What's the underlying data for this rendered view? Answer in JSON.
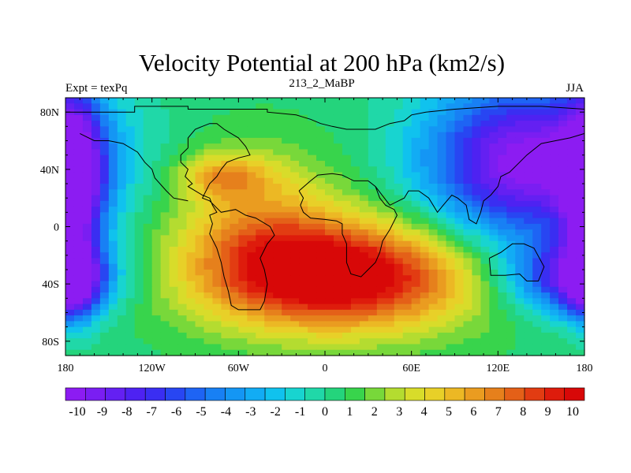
{
  "chart_data": {
    "type": "heatmap",
    "title": "Velocity Potential at 200 hPa (km2/s)",
    "left_string": "Expt = texPq",
    "center_string": "213_2_MaBP",
    "right_string": "JJA",
    "x_ticks": [
      "180",
      "120W",
      "60W",
      "0",
      "60E",
      "120E",
      "180"
    ],
    "x_tick_values": [
      -180,
      -120,
      -60,
      0,
      60,
      120,
      180
    ],
    "y_ticks": [
      "80N",
      "40N",
      "0",
      "40S",
      "80S"
    ],
    "y_tick_values": [
      80,
      40,
      0,
      -40,
      -80
    ],
    "xlim": [
      -180,
      180
    ],
    "ylim": [
      -90,
      90
    ],
    "colorbar_labels": [
      "-10",
      "-9",
      "-8",
      "-7",
      "-6",
      "-5",
      "-4",
      "-3",
      "-2",
      "-1",
      "0",
      "1",
      "2",
      "3",
      "4",
      "5",
      "6",
      "7",
      "8",
      "9",
      "10"
    ],
    "colorbar_colors": [
      "#8c1cf2",
      "#7a1ef2",
      "#6420f2",
      "#4e22f2",
      "#3a2ef2",
      "#2846f2",
      "#1e64f4",
      "#1880f4",
      "#1496f4",
      "#12acf4",
      "#10c2ee",
      "#18d4d0",
      "#20d8a8",
      "#24d47c",
      "#38d44c",
      "#78d83a",
      "#b4dc30",
      "#d8dc2a",
      "#e8d028",
      "#ecb824",
      "#ea9c20",
      "#e6801c",
      "#e46018",
      "#e23c12",
      "#de1c0c",
      "#d80808"
    ],
    "value_range": [
      -10.5,
      10.5
    ],
    "field_centers": [
      {
        "lon": 10,
        "lat": -35,
        "value": 11,
        "spread_lon": 95,
        "spread_lat": 38
      },
      {
        "lon": -45,
        "lat": 5,
        "value": 4,
        "spread_lon": 60,
        "spread_lat": 50
      },
      {
        "lon": -70,
        "lat": 35,
        "value": 4,
        "spread_lon": 30,
        "spread_lat": 15
      },
      {
        "lon": 140,
        "lat": 45,
        "value": -11,
        "spread_lon": 70,
        "spread_lat": 55
      },
      {
        "lon": 170,
        "lat": -35,
        "value": -8,
        "spread_lon": 45,
        "spread_lat": 25
      },
      {
        "lon": -175,
        "lat": 30,
        "value": -10,
        "spread_lon": 20,
        "spread_lat": 60
      },
      {
        "lon": -175,
        "lat": -40,
        "value": -7,
        "spread_lon": 18,
        "spread_lat": 25
      }
    ],
    "coastline": [
      [
        [
          -180,
          80
        ],
        [
          -132,
          80
        ],
        [
          -132,
          84
        ],
        [
          -95,
          84
        ],
        [
          -95,
          82
        ],
        [
          -40,
          82
        ],
        [
          -40,
          80
        ],
        [
          -20,
          78
        ],
        [
          -10,
          75
        ],
        [
          -3,
          72
        ],
        [
          5,
          70
        ],
        [
          15,
          68
        ],
        [
          25,
          68
        ],
        [
          35,
          68
        ],
        [
          40,
          70
        ],
        [
          45,
          72
        ],
        [
          55,
          74
        ],
        [
          60,
          78
        ],
        [
          70,
          80
        ],
        [
          90,
          82
        ],
        [
          120,
          84
        ],
        [
          150,
          84
        ],
        [
          180,
          82
        ]
      ],
      [
        [
          -95,
          55
        ],
        [
          -100,
          50
        ],
        [
          -100,
          45
        ],
        [
          -95,
          40
        ],
        [
          -97,
          35
        ],
        [
          -92,
          30
        ],
        [
          -95,
          28
        ],
        [
          -90,
          25
        ],
        [
          -85,
          22
        ],
        [
          -80,
          20
        ],
        [
          -78,
          15
        ],
        [
          -75,
          10
        ],
        [
          -80,
          8
        ],
        [
          -78,
          2
        ],
        [
          -80,
          -5
        ],
        [
          -75,
          -15
        ],
        [
          -72,
          -25
        ],
        [
          -70,
          -35
        ],
        [
          -67,
          -45
        ],
        [
          -65,
          -55
        ],
        [
          -60,
          -58
        ],
        [
          -45,
          -58
        ],
        [
          -42,
          -52
        ],
        [
          -40,
          -40
        ],
        [
          -42,
          -30
        ],
        [
          -45,
          -22
        ],
        [
          -40,
          -12
        ],
        [
          -35,
          -6
        ],
        [
          -38,
          0
        ],
        [
          -48,
          6
        ],
        [
          -55,
          8
        ],
        [
          -62,
          12
        ],
        [
          -72,
          10
        ],
        [
          -80,
          18
        ],
        [
          -85,
          20
        ],
        [
          -80,
          30
        ],
        [
          -75,
          35
        ],
        [
          -72,
          40
        ],
        [
          -68,
          45
        ],
        [
          -60,
          48
        ],
        [
          -52,
          50
        ],
        [
          -55,
          56
        ],
        [
          -60,
          62
        ],
        [
          -70,
          68
        ],
        [
          -75,
          72
        ],
        [
          -80,
          72
        ],
        [
          -85,
          70
        ],
        [
          -90,
          68
        ],
        [
          -95,
          62
        ],
        [
          -95,
          55
        ]
      ],
      [
        [
          -18,
          25
        ],
        [
          -15,
          20
        ],
        [
          -17,
          15
        ],
        [
          -15,
          10
        ],
        [
          -10,
          6
        ],
        [
          0,
          5
        ],
        [
          8,
          4
        ],
        [
          12,
          2
        ],
        [
          12,
          -5
        ],
        [
          15,
          -12
        ],
        [
          15,
          -25
        ],
        [
          18,
          -33
        ],
        [
          25,
          -35
        ],
        [
          30,
          -30
        ],
        [
          35,
          -25
        ],
        [
          38,
          -18
        ],
        [
          40,
          -10
        ],
        [
          45,
          -2
        ],
        [
          50,
          8
        ],
        [
          48,
          12
        ],
        [
          42,
          15
        ],
        [
          38,
          20
        ],
        [
          35,
          28
        ],
        [
          30,
          32
        ],
        [
          20,
          32
        ],
        [
          12,
          36
        ],
        [
          5,
          37
        ],
        [
          -5,
          36
        ],
        [
          -10,
          32
        ],
        [
          -18,
          25
        ]
      ],
      [
        [
          35,
          28
        ],
        [
          45,
          15
        ],
        [
          55,
          20
        ],
        [
          58,
          25
        ],
        [
          65,
          25
        ],
        [
          72,
          20
        ],
        [
          78,
          10
        ],
        [
          82,
          15
        ],
        [
          88,
          22
        ],
        [
          92,
          20
        ],
        [
          98,
          15
        ],
        [
          100,
          5
        ],
        [
          105,
          2
        ],
        [
          108,
          10
        ],
        [
          110,
          18
        ],
        [
          115,
          22
        ],
        [
          120,
          28
        ],
        [
          122,
          35
        ],
        [
          128,
          38
        ],
        [
          135,
          45
        ],
        [
          140,
          50
        ],
        [
          150,
          58
        ],
        [
          160,
          60
        ],
        [
          170,
          62
        ],
        [
          180,
          65
        ]
      ],
      [
        [
          114,
          -22
        ],
        [
          115,
          -34
        ],
        [
          125,
          -34
        ],
        [
          135,
          -33
        ],
        [
          140,
          -38
        ],
        [
          148,
          -38
        ],
        [
          152,
          -28
        ],
        [
          145,
          -15
        ],
        [
          138,
          -12
        ],
        [
          130,
          -12
        ],
        [
          122,
          -18
        ],
        [
          114,
          -22
        ]
      ],
      [
        [
          -170,
          65
        ],
        [
          -160,
          60
        ],
        [
          -150,
          60
        ],
        [
          -140,
          58
        ],
        [
          -130,
          52
        ],
        [
          -125,
          45
        ],
        [
          -120,
          40
        ],
        [
          -118,
          34
        ],
        [
          -110,
          25
        ],
        [
          -105,
          20
        ],
        [
          -95,
          18
        ]
      ]
    ]
  }
}
